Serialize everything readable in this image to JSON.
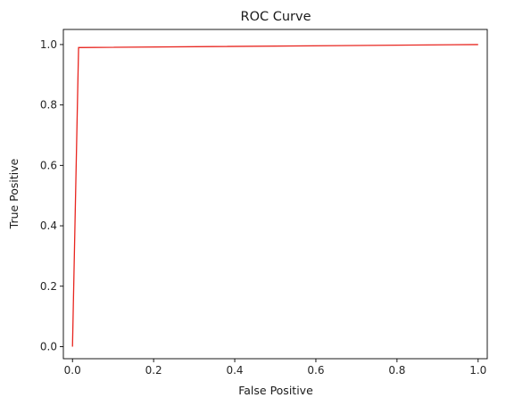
{
  "chart_data": {
    "type": "line",
    "title": "ROC Curve",
    "xlabel": "False Positive",
    "ylabel": "True Positive",
    "xlim": [
      -0.0225,
      1.0225
    ],
    "ylim": [
      -0.04,
      1.05
    ],
    "xticks": [
      0.0,
      0.2,
      0.4,
      0.6,
      0.8,
      1.0
    ],
    "xtick_labels": [
      "0.0",
      "0.2",
      "0.4",
      "0.6",
      "0.8",
      "1.0"
    ],
    "yticks": [
      0.0,
      0.2,
      0.4,
      0.6,
      0.8,
      1.0
    ],
    "ytick_labels": [
      "0.0",
      "0.2",
      "0.4",
      "0.6",
      "0.8",
      "1.0"
    ],
    "grid": false,
    "series": [
      {
        "color": "#e8251f",
        "x": [
          0.0,
          0.015,
          1.0
        ],
        "y": [
          0.0,
          0.99,
          1.0
        ]
      }
    ]
  }
}
